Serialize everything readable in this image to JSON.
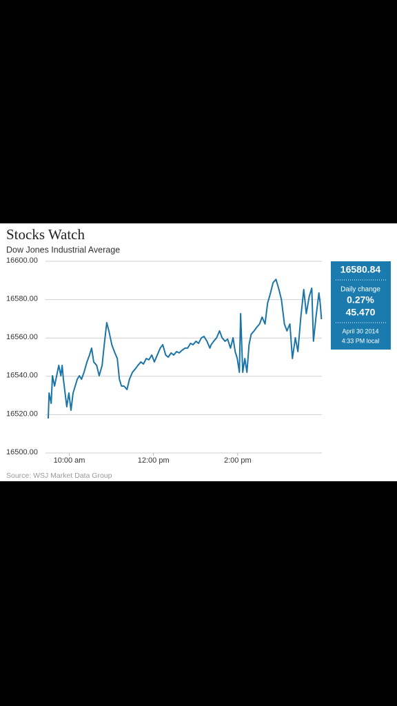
{
  "chart_data": {
    "type": "line",
    "title": "Stocks Watch",
    "subtitle": "Dow Jones Industrial Average",
    "source": "Source: WSJ Market Data Group",
    "color": "#1a74a8",
    "grid": true,
    "xlim": [
      9.5,
      16
    ],
    "xticks": [
      {
        "value": 10,
        "label": "10:00 am"
      },
      {
        "value": 12,
        "label": "12:00 pm"
      },
      {
        "value": 14,
        "label": "2:00 pm"
      }
    ],
    "ylim": [
      16500,
      16600
    ],
    "yticks": [
      {
        "value": 16500,
        "label": "16500.00"
      },
      {
        "value": 16520,
        "label": "16520.00"
      },
      {
        "value": 16540,
        "label": "16540.00"
      },
      {
        "value": 16560,
        "label": "16560.00"
      },
      {
        "value": 16580,
        "label": "16580.00"
      },
      {
        "value": 16600,
        "label": "16600.00"
      }
    ],
    "x": [
      9.5,
      9.52,
      9.57,
      9.6,
      9.65,
      9.7,
      9.75,
      9.8,
      9.83,
      9.86,
      9.91,
      9.94,
      9.99,
      10.04,
      10.09,
      10.14,
      10.19,
      10.24,
      10.29,
      10.35,
      10.42,
      10.48,
      10.53,
      10.58,
      10.65,
      10.71,
      10.78,
      10.83,
      10.89,
      10.94,
      11.01,
      11.07,
      11.14,
      11.19,
      11.24,
      11.3,
      11.37,
      11.43,
      11.5,
      11.57,
      11.63,
      11.7,
      11.76,
      11.83,
      11.89,
      11.96,
      12.02,
      12.09,
      12.16,
      12.22,
      12.29,
      12.35,
      12.42,
      12.48,
      12.55,
      12.61,
      12.68,
      12.75,
      12.81,
      12.88,
      12.94,
      13.01,
      13.07,
      13.14,
      13.2,
      13.27,
      13.34,
      13.37,
      13.43,
      13.5,
      13.57,
      13.63,
      13.7,
      13.76,
      13.83,
      13.89,
      13.94,
      13.99,
      14.04,
      14.07,
      14.12,
      14.17,
      14.22,
      14.27,
      14.32,
      14.39,
      14.45,
      14.52,
      14.58,
      14.65,
      14.71,
      14.78,
      14.84,
      14.91,
      14.98,
      15.04,
      15.11,
      15.17,
      15.24,
      15.3,
      15.37,
      15.43,
      15.5,
      15.57,
      15.63,
      15.7,
      15.76,
      15.8,
      15.86,
      15.93,
      15.96,
      15.99
    ],
    "values": [
      16518.0,
      16531.3,
      16525.9,
      16540.3,
      16534.9,
      16540.3,
      16545.7,
      16540.3,
      16545.7,
      16538.5,
      16529.5,
      16524.1,
      16531.3,
      16522.3,
      16531.3,
      16534.9,
      16538.5,
      16540.3,
      16538.5,
      16542.1,
      16547.5,
      16551.1,
      16554.7,
      16547.5,
      16545.7,
      16540.3,
      16545.7,
      16556.5,
      16568.0,
      16563.7,
      16556.5,
      16552.9,
      16549.3,
      16538.5,
      16534.9,
      16534.9,
      16533.1,
      16538.5,
      16542.1,
      16543.9,
      16545.7,
      16547.5,
      16546.4,
      16549.3,
      16548.6,
      16551.1,
      16547.5,
      16551.1,
      16554.7,
      16556.5,
      16551.1,
      16550.0,
      16552.2,
      16551.1,
      16552.9,
      16552.2,
      16553.6,
      16554.7,
      16554.7,
      16557.2,
      16556.5,
      16558.3,
      16557.2,
      16560.1,
      16560.8,
      16558.3,
      16554.7,
      16556.5,
      16558.3,
      16560.1,
      16563.7,
      16560.1,
      16558.3,
      16559.4,
      16554.7,
      16560.1,
      16552.9,
      16549.3,
      16542.1,
      16572.7,
      16542.1,
      16549.3,
      16542.1,
      16556.5,
      16561.9,
      16563.7,
      16565.5,
      16567.3,
      16570.9,
      16567.3,
      16578.1,
      16583.5,
      16588.8,
      16590.6,
      16585.3,
      16579.9,
      16567.3,
      16563.7,
      16567.3,
      16549.3,
      16560.1,
      16552.9,
      16570.9,
      16585.3,
      16572.7,
      16581.7,
      16586.0,
      16558.3,
      16570.9,
      16583.5,
      16578.1,
      16569.8
    ],
    "info": {
      "last": "16580.84",
      "change_label": "Daily change",
      "change_pct": "0.27%",
      "change": "45.470",
      "date": "April 30 2014",
      "time": "4:33 PM local"
    }
  }
}
